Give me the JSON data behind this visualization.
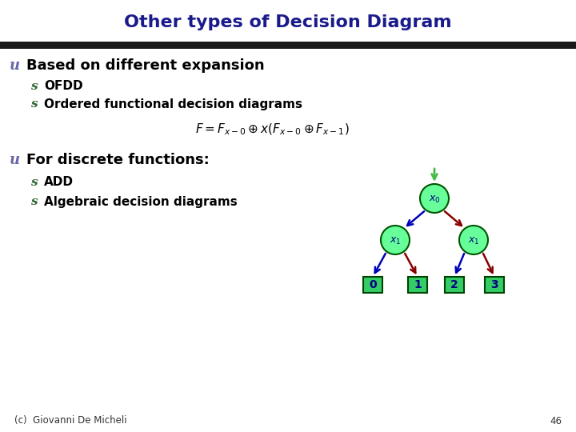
{
  "title": "Other types of Decision Diagram",
  "title_color": "#1a1a8c",
  "title_fontsize": 16,
  "bg_color": "#ffffff",
  "header_bar_color": "#1a1a1a",
  "bullet_u_color": "#6666aa",
  "bullet_s_color": "#336633",
  "text_color": "#000000",
  "footer_text": "(c)  Giovanni De Micheli",
  "footer_number": "46",
  "node_fill_color": "#66ff99",
  "node_edge_color": "#005500",
  "node_text_color": "#000080",
  "leaf_fill_color": "#33cc66",
  "leaf_edge_color": "#004400",
  "leaf_text_color": "#000080",
  "arrow_blue_color": "#0000bb",
  "arrow_red_color": "#880000",
  "arrow_green_color": "#44bb44",
  "u_fontsize": 13,
  "s_fontsize": 11,
  "text_main_fontsize": 13,
  "text_sub_fontsize": 11,
  "formula_fontsize": 11
}
